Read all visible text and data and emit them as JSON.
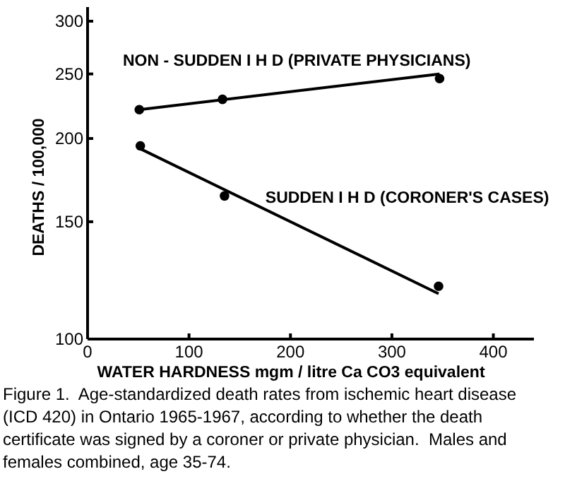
{
  "chart_data": {
    "type": "scatter",
    "xlabel": "WATER HARDNESS mgm / litre Ca CO3 equivalent",
    "ylabel": "DEATHS / 100,000",
    "xlim": [
      0,
      440
    ],
    "xticks": [
      0,
      100,
      200,
      300,
      400
    ],
    "ylim": [
      100,
      315
    ],
    "yticks": [
      100,
      150,
      200,
      250,
      300
    ],
    "log": "y",
    "grid": false,
    "marker": "circle",
    "series": [
      {
        "type": "line",
        "name": "NON - SUDDEN I H D (PRIVATE PHYSICIANS)",
        "color": "#000000",
        "x": [
          51,
          347
        ],
        "values": [
          221,
          250
        ],
        "marker": "none"
      },
      {
        "type": "line",
        "name": "SUDDEN I H D (CORONER'S CASES)",
        "color": "#000000",
        "x": [
          52,
          346
        ],
        "values": [
          193,
          117
        ],
        "marker": "none"
      },
      {
        "color": "#000000",
        "x": [
          51,
          133,
          347
        ],
        "values": [
          221,
          229,
          246
        ]
      },
      {
        "color": "#000000",
        "x": [
          52,
          135,
          346
        ],
        "values": [
          195,
          164,
          120
        ]
      }
    ],
    "annotations": [
      "Figure 1.  Age-standardized death rates from ischemic heart disease (ICD 420) in Ontario 1965-1967, according to whether the death certificate was signed by a coroner or private physician.  Males and females combined, age 35-74."
    ]
  }
}
